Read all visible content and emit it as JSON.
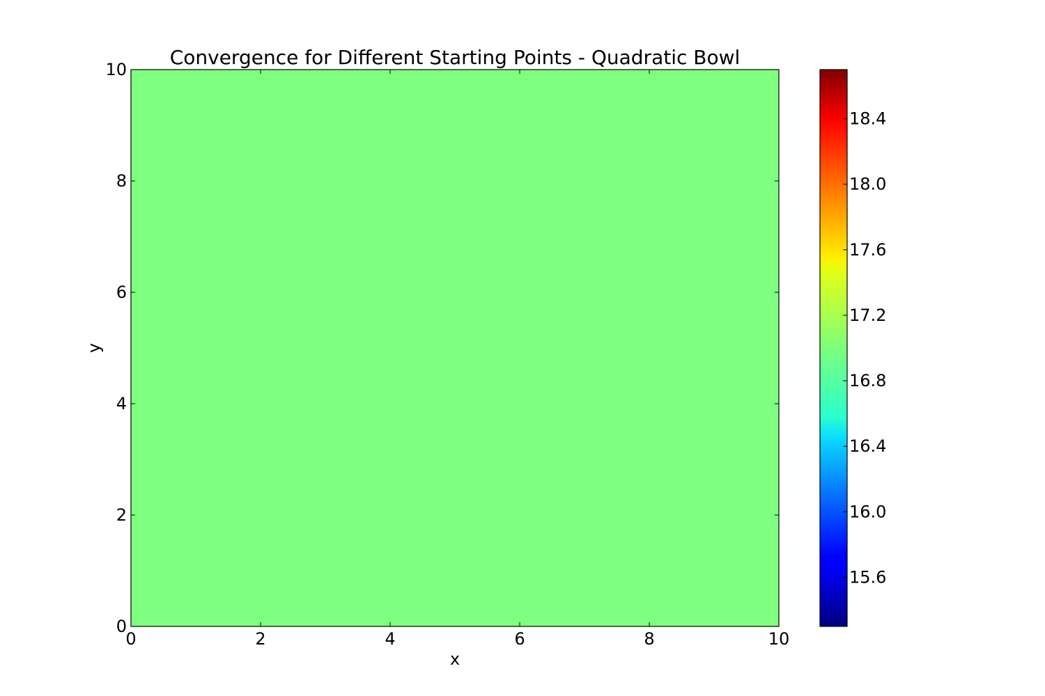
{
  "chart_data": {
    "type": "heatmap",
    "title": "Convergence for Different Starting Points - Quadratic Bowl",
    "xlabel": "x",
    "ylabel": "y",
    "xlim": [
      0,
      10
    ],
    "ylim": [
      0,
      10
    ],
    "x_ticks": [
      0,
      2,
      4,
      6,
      8,
      10
    ],
    "y_ticks": [
      0,
      2,
      4,
      6,
      8,
      10
    ],
    "field_value": 17.0,
    "field_color": "#7fff7f",
    "colorbar": {
      "colormap": "jet",
      "range": [
        15.3,
        18.7
      ],
      "ticks": [
        "15.6",
        "16.0",
        "16.4",
        "16.8",
        "17.2",
        "17.6",
        "18.0",
        "18.4"
      ]
    },
    "grid": false
  }
}
